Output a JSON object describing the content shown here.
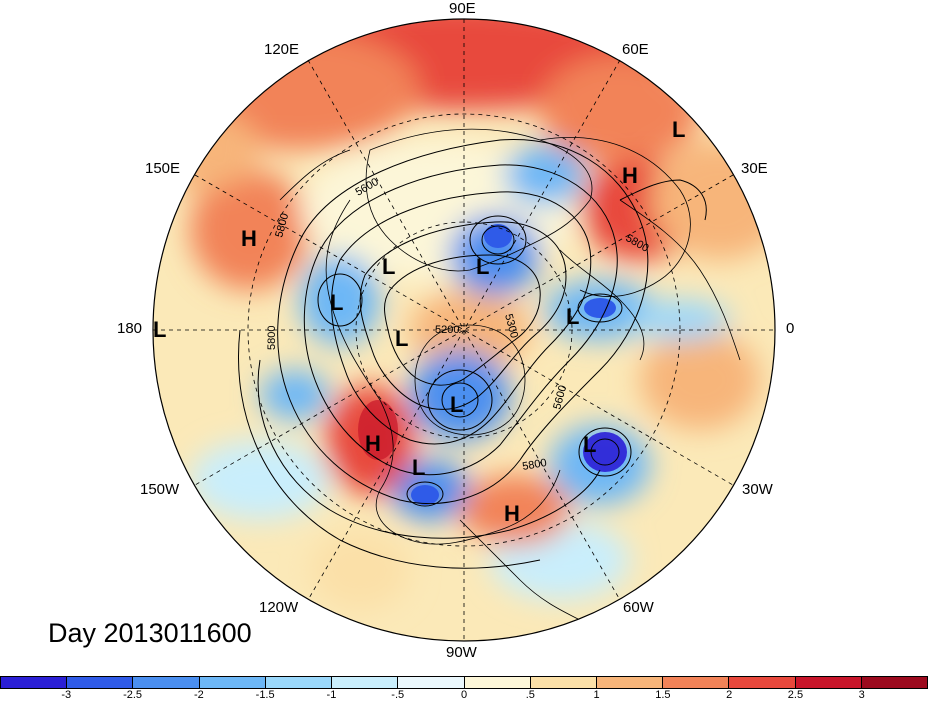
{
  "title": "Day 2013011600",
  "longitude_labels": {
    "e90": "90E",
    "e60": "60E",
    "e30": "30E",
    "zero": "0",
    "w30": "30W",
    "w60": "60W",
    "w90": "90W",
    "w120": "120W",
    "w150": "150W",
    "d180": "180",
    "e150": "150E",
    "e120": "120E"
  },
  "centers": [
    {
      "type": "L",
      "where": "Pacific, dateline"
    },
    {
      "type": "H",
      "where": "East Asia"
    },
    {
      "type": "L",
      "where": "North Pacific"
    },
    {
      "type": "L",
      "where": "Bering Sea"
    },
    {
      "type": "L",
      "where": "Arctic"
    },
    {
      "type": "L",
      "where": "Hudson Bay area"
    },
    {
      "type": "L",
      "where": "Canadian Arctic"
    },
    {
      "type": "L",
      "where": "Scandinavia"
    },
    {
      "type": "H",
      "where": "Western Siberia"
    },
    {
      "type": "L",
      "where": "Northern Siberia"
    },
    {
      "type": "H",
      "where": "US West Coast"
    },
    {
      "type": "L",
      "where": "US Southwest"
    },
    {
      "type": "H",
      "where": "Gulf of Mexico"
    },
    {
      "type": "L",
      "where": "North Atlantic"
    }
  ],
  "contour_labels": [
    "5800",
    "5600",
    "5800",
    "5200",
    "5300",
    "5600",
    "5800",
    "5800",
    "5600"
  ],
  "colorbar": {
    "ticks": [
      "-3",
      "-2.5",
      "-2",
      "-1.5",
      "-1",
      "-.5",
      "0",
      ".5",
      "1",
      "1.5",
      "2",
      "2.5",
      "3"
    ],
    "colors": [
      "#2b1fd6",
      "#2f5be8",
      "#4b8ff0",
      "#6db7f6",
      "#9bd8fb",
      "#c9eefc",
      "#eaf7fc",
      "#fcf6d8",
      "#fbe0a8",
      "#f7b57a",
      "#f28358",
      "#e8483c",
      "#c8152a",
      "#9c0a1e"
    ]
  },
  "colors": {
    "warm": "#f4a06e",
    "cold": "#4f8ef0",
    "land_line": "#000000",
    "contour": "#000000"
  }
}
